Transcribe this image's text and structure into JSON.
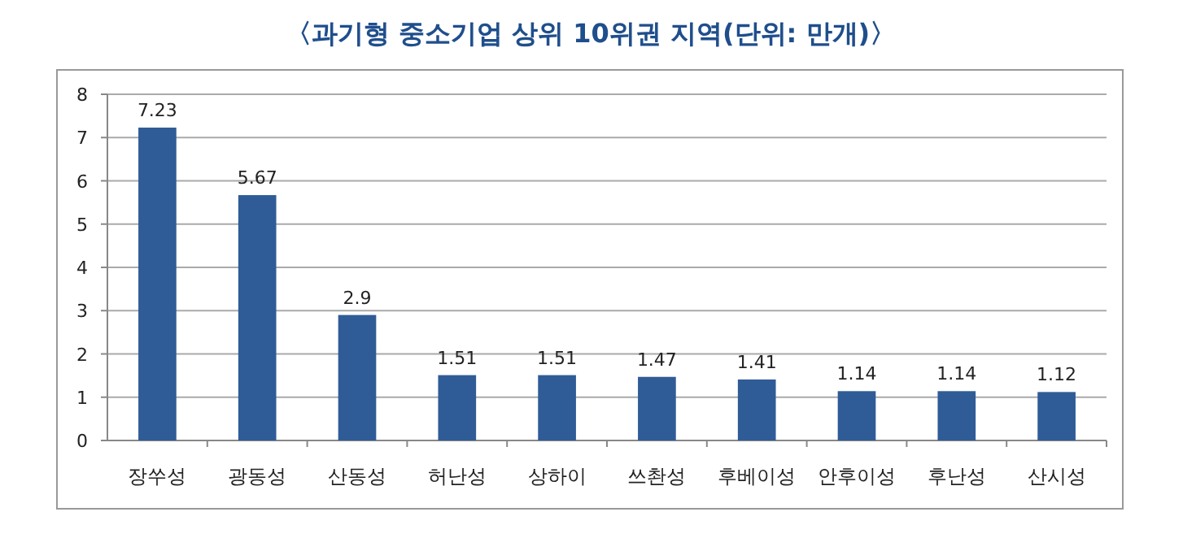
{
  "chart_data": {
    "type": "bar",
    "title": "〈과기형 중소기업 상위 10위권 지역(단위: 만개)〉",
    "categories": [
      "장쑤성",
      "광동성",
      "산동성",
      "허난성",
      "상하이",
      "쓰촨성",
      "후베이성",
      "안후이성",
      "후난성",
      "산시성"
    ],
    "values": [
      7.23,
      5.67,
      2.9,
      1.51,
      1.51,
      1.47,
      1.41,
      1.14,
      1.14,
      1.12
    ],
    "color": "#2f5c97",
    "ylim": [
      0,
      8
    ],
    "yticks": [
      0,
      1,
      2,
      3,
      4,
      5,
      6,
      7,
      8
    ],
    "grid": "y",
    "data_labels": true
  }
}
